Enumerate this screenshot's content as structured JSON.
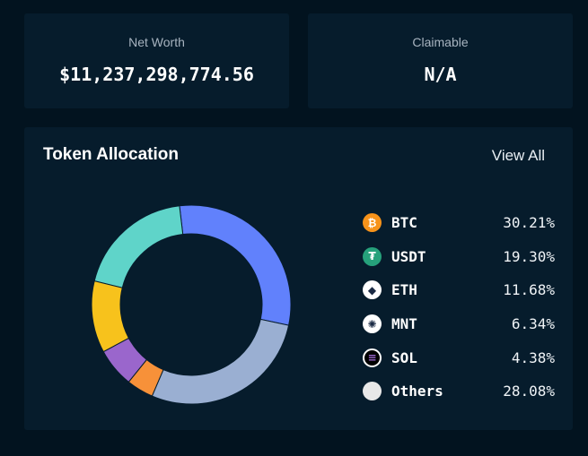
{
  "net_worth": {
    "label": "Net Worth",
    "value": "$11,237,298,774.56"
  },
  "claimable": {
    "label": "Claimable",
    "value": "N/A"
  },
  "allocation": {
    "title": "Token Allocation",
    "view_all": "View All",
    "tokens": [
      {
        "symbol": "BTC",
        "percent": "30.21%",
        "icon": "bitcoin-icon",
        "icon_glyph": "₿",
        "icon_color": "#f7931a"
      },
      {
        "symbol": "USDT",
        "percent": "19.30%",
        "icon": "tether-icon",
        "icon_glyph": "₮",
        "icon_color": "#26a17b"
      },
      {
        "symbol": "ETH",
        "percent": "11.68%",
        "icon": "ethereum-icon",
        "icon_glyph": "◆",
        "icon_color": "#ffffff"
      },
      {
        "symbol": "MNT",
        "percent": "6.34%",
        "icon": "mantle-icon",
        "icon_glyph": "✺",
        "icon_color": "#ffffff"
      },
      {
        "symbol": "SOL",
        "percent": "4.38%",
        "icon": "solana-icon",
        "icon_glyph": "≡",
        "icon_color": "#000000"
      },
      {
        "symbol": "Others",
        "percent": "28.08%",
        "icon": "others-icon",
        "icon_glyph": "",
        "icon_color": "#e8e8e8"
      }
    ]
  },
  "chart_data": {
    "type": "pie",
    "donut": true,
    "categories": [
      "BTC",
      "USDT",
      "ETH",
      "MNT",
      "SOL",
      "Others"
    ],
    "values": [
      30.21,
      19.3,
      11.68,
      6.34,
      4.38,
      28.08
    ],
    "colors": [
      "#6181fc",
      "#5fd4c9",
      "#f7c21c",
      "#9a66cc",
      "#f79139",
      "#9aafd2"
    ],
    "start_angle_deg": -12,
    "direction": "counterclockwise"
  }
}
